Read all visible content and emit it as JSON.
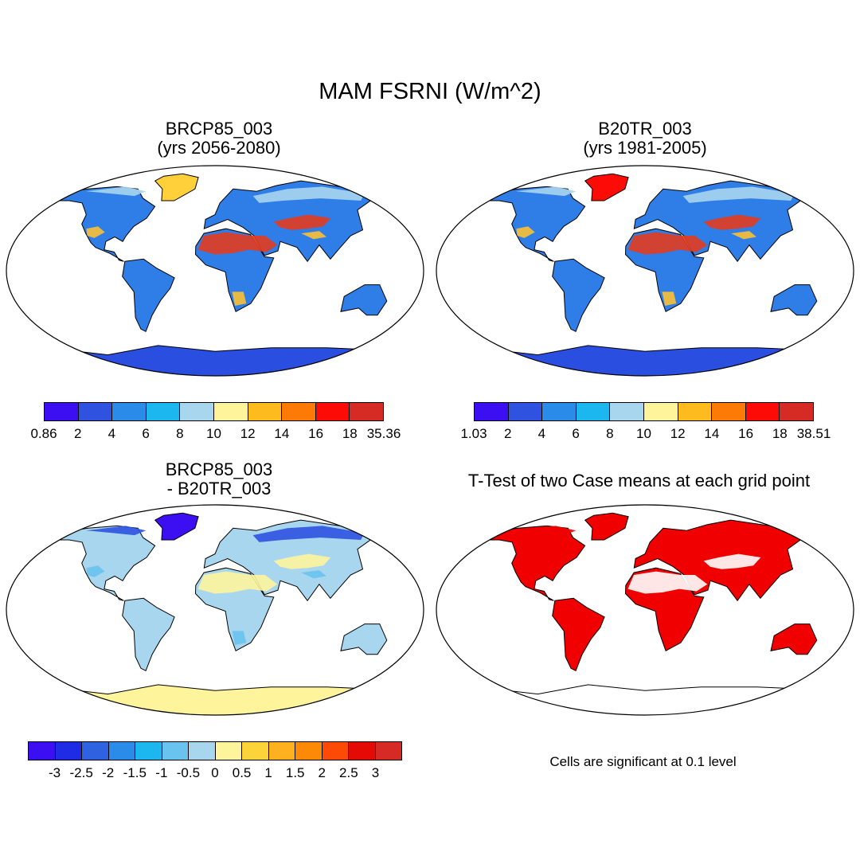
{
  "title": "MAM FSRNI (W/m^2)",
  "panels": [
    {
      "title_line1": "BRCP85_003",
      "title_line2": "(yrs 2056-2080)",
      "colorbar": {
        "colors": [
          "#3b0ff2",
          "#2f52e0",
          "#2a8ce8",
          "#1cb7ef",
          "#a9d6ef",
          "#fdf49c",
          "#fdbb1e",
          "#fd7a06",
          "#fd0b06",
          "#d62b24"
        ],
        "tick_labels": [
          "0.86",
          "2",
          "4",
          "6",
          "8",
          "10",
          "12",
          "14",
          "16",
          "18",
          "35.36"
        ]
      },
      "field": {
        "ocean": "#ffffff",
        "land": "#2f7de6",
        "antarctica": "#2a4fe0",
        "hot": "#e43c1e",
        "warm": "#fcc033",
        "cold_highlat": "#a9d6ef",
        "ice": "#ffd03a"
      }
    },
    {
      "title_line1": "B20TR_003",
      "title_line2": "(yrs 1981-2005)",
      "colorbar": {
        "colors": [
          "#3b0ff2",
          "#2f52e0",
          "#2a8ce8",
          "#1cb7ef",
          "#a9d6ef",
          "#fdf49c",
          "#fdbb1e",
          "#fd7a06",
          "#fd0b06",
          "#d62b24"
        ],
        "tick_labels": [
          "1.03",
          "2",
          "4",
          "6",
          "8",
          "10",
          "12",
          "14",
          "16",
          "18",
          "38.51"
        ]
      },
      "field": {
        "ocean": "#ffffff",
        "land": "#2f7de6",
        "antarctica": "#2a4fe0",
        "hot": "#e43c1e",
        "warm": "#fcc033",
        "cold_highlat": "#a9d6ef",
        "ice": "#fd0b06"
      }
    },
    {
      "title_line1": "BRCP85_003",
      "title_line2": "- B20TR_003",
      "colorbar": {
        "colors": [
          "#3b0ff2",
          "#1e2ce6",
          "#2f62e0",
          "#2a8ce8",
          "#1cb7ef",
          "#69c3ee",
          "#a9d6ef",
          "#fdf49c",
          "#fdd33a",
          "#fdb11e",
          "#fd8a06",
          "#fd4a06",
          "#e40b06",
          "#d62b24"
        ],
        "tick_labels": [
          "-3",
          "-2.5",
          "-2",
          "-1.5",
          "-1",
          "-0.5",
          "0",
          "0.5",
          "1",
          "1.5",
          "2",
          "2.5",
          "3"
        ]
      },
      "field": {
        "ocean": "#ffffff",
        "land": "#a9d6ef",
        "antarctica": "#fdf49c",
        "hot": "#fdf49c",
        "warm": "#69c3ee",
        "cold_highlat": "#2f52e0",
        "ice": "#3b0ff2"
      }
    },
    {
      "title_line1": "T-Test of two Case means at each grid point",
      "note": "Cells are significant at 0.1 level",
      "field": {
        "ocean": "#ffffff",
        "land": "#f00000",
        "antarctica": "#ffffff",
        "hot": "#ffffff",
        "warm": "#f00000",
        "cold_highlat": "#f00000",
        "ice": "#f00000"
      }
    }
  ]
}
